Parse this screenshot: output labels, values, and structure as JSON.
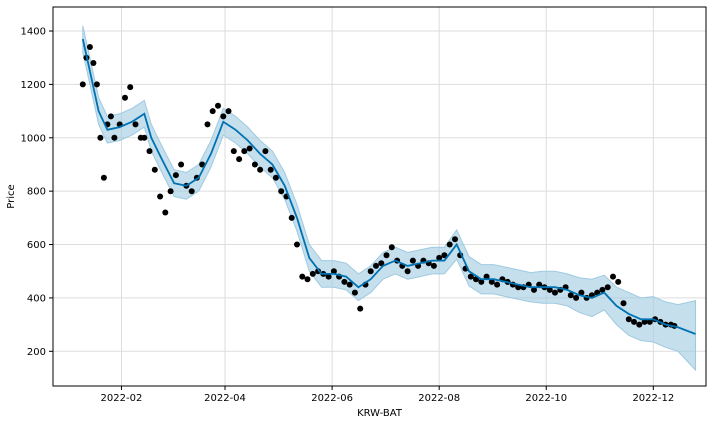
{
  "chart_data": {
    "type": "line",
    "xlabel": "KRW-BAT",
    "ylabel": "Price",
    "x_range": [
      "2021-12-24",
      "2022-12-31"
    ],
    "ylim": [
      70,
      1490
    ],
    "grid": true,
    "x_ticks": [
      {
        "date": "2022-02-01",
        "label": "2022-02"
      },
      {
        "date": "2022-04-01",
        "label": "2022-04"
      },
      {
        "date": "2022-06-01",
        "label": "2022-06"
      },
      {
        "date": "2022-08-01",
        "label": "2022-08"
      },
      {
        "date": "2022-10-01",
        "label": "2022-10"
      },
      {
        "date": "2022-12-01",
        "label": "2022-12"
      }
    ],
    "y_ticks": [
      200,
      400,
      600,
      800,
      1000,
      1200,
      1400
    ],
    "colors": {
      "forecast": "#0072B2",
      "interval": "#9ecae1",
      "observed": "#000000",
      "grid": "#dddddd"
    },
    "series": [
      {
        "kind": "forecast",
        "x": [
          "2022-01-10",
          "2022-01-14",
          "2022-01-19",
          "2022-01-24",
          "2022-01-31",
          "2022-02-07",
          "2022-02-14",
          "2022-02-18",
          "2022-02-24",
          "2022-03-03",
          "2022-03-10",
          "2022-03-17",
          "2022-03-24",
          "2022-03-31",
          "2022-04-07",
          "2022-04-14",
          "2022-04-21",
          "2022-04-28",
          "2022-05-05",
          "2022-05-12",
          "2022-05-19",
          "2022-05-26",
          "2022-06-02",
          "2022-06-09",
          "2022-06-16",
          "2022-06-23",
          "2022-06-30",
          "2022-07-07",
          "2022-07-14",
          "2022-07-21",
          "2022-07-28",
          "2022-08-04",
          "2022-08-11",
          "2022-08-18",
          "2022-08-25",
          "2022-09-01",
          "2022-09-08",
          "2022-09-15",
          "2022-09-22",
          "2022-09-29",
          "2022-10-06",
          "2022-10-13",
          "2022-10-20",
          "2022-10-27",
          "2022-11-03",
          "2022-11-10",
          "2022-11-17",
          "2022-11-24",
          "2022-12-01",
          "2022-12-08",
          "2022-12-15",
          "2022-12-25"
        ],
        "y": [
          1370,
          1250,
          1100,
          1030,
          1040,
          1060,
          1090,
          1000,
          920,
          830,
          820,
          850,
          940,
          1060,
          1030,
          990,
          940,
          900,
          820,
          700,
          550,
          490,
          490,
          480,
          440,
          470,
          520,
          540,
          520,
          530,
          540,
          540,
          600,
          500,
          470,
          470,
          460,
          450,
          440,
          440,
          440,
          430,
          410,
          400,
          420,
          370,
          340,
          320,
          320,
          300,
          290,
          265
        ]
      },
      {
        "kind": "interval",
        "x": [
          "2022-01-10",
          "2022-01-14",
          "2022-01-19",
          "2022-01-24",
          "2022-01-31",
          "2022-02-07",
          "2022-02-14",
          "2022-02-18",
          "2022-02-24",
          "2022-03-03",
          "2022-03-10",
          "2022-03-17",
          "2022-03-24",
          "2022-03-31",
          "2022-04-07",
          "2022-04-14",
          "2022-04-21",
          "2022-04-28",
          "2022-05-05",
          "2022-05-12",
          "2022-05-19",
          "2022-05-26",
          "2022-06-02",
          "2022-06-09",
          "2022-06-16",
          "2022-06-23",
          "2022-06-30",
          "2022-07-07",
          "2022-07-14",
          "2022-07-21",
          "2022-07-28",
          "2022-08-04",
          "2022-08-11",
          "2022-08-18",
          "2022-08-25",
          "2022-09-01",
          "2022-09-08",
          "2022-09-15",
          "2022-09-22",
          "2022-09-29",
          "2022-10-06",
          "2022-10-13",
          "2022-10-20",
          "2022-10-27",
          "2022-11-03",
          "2022-11-10",
          "2022-11-17",
          "2022-11-24",
          "2022-12-01",
          "2022-12-08",
          "2022-12-15",
          "2022-12-25"
        ],
        "upper": [
          1420,
          1300,
          1150,
          1080,
          1090,
          1110,
          1140,
          1050,
          970,
          880,
          870,
          900,
          990,
          1110,
          1080,
          1040,
          990,
          950,
          870,
          750,
          600,
          540,
          540,
          530,
          490,
          520,
          570,
          590,
          570,
          580,
          590,
          590,
          655,
          555,
          525,
          525,
          515,
          505,
          495,
          500,
          500,
          490,
          475,
          470,
          485,
          440,
          420,
          400,
          405,
          385,
          375,
          390
        ],
        "lower": [
          1320,
          1200,
          1050,
          980,
          990,
          1010,
          1040,
          950,
          870,
          780,
          770,
          800,
          890,
          1010,
          980,
          940,
          890,
          850,
          770,
          650,
          500,
          440,
          440,
          430,
          390,
          420,
          470,
          490,
          470,
          480,
          490,
          490,
          545,
          445,
          415,
          415,
          405,
          395,
          385,
          380,
          380,
          370,
          345,
          330,
          355,
          300,
          260,
          240,
          235,
          215,
          200,
          130
        ]
      },
      {
        "kind": "observed",
        "x": [
          "2022-01-10",
          "2022-01-12",
          "2022-01-14",
          "2022-01-16",
          "2022-01-18",
          "2022-01-20",
          "2022-01-22",
          "2022-01-24",
          "2022-01-26",
          "2022-01-28",
          "2022-01-31",
          "2022-02-03",
          "2022-02-06",
          "2022-02-09",
          "2022-02-12",
          "2022-02-14",
          "2022-02-17",
          "2022-02-20",
          "2022-02-23",
          "2022-02-26",
          "2022-03-01",
          "2022-03-04",
          "2022-03-07",
          "2022-03-10",
          "2022-03-13",
          "2022-03-16",
          "2022-03-19",
          "2022-03-22",
          "2022-03-25",
          "2022-03-28",
          "2022-03-31",
          "2022-04-03",
          "2022-04-06",
          "2022-04-09",
          "2022-04-12",
          "2022-04-15",
          "2022-04-18",
          "2022-04-21",
          "2022-04-24",
          "2022-04-27",
          "2022-04-30",
          "2022-05-03",
          "2022-05-06",
          "2022-05-09",
          "2022-05-12",
          "2022-05-15",
          "2022-05-18",
          "2022-05-21",
          "2022-05-24",
          "2022-05-27",
          "2022-05-30",
          "2022-06-02",
          "2022-06-05",
          "2022-06-08",
          "2022-06-11",
          "2022-06-14",
          "2022-06-17",
          "2022-06-20",
          "2022-06-23",
          "2022-06-26",
          "2022-06-29",
          "2022-07-02",
          "2022-07-05",
          "2022-07-08",
          "2022-07-11",
          "2022-07-14",
          "2022-07-17",
          "2022-07-20",
          "2022-07-23",
          "2022-07-26",
          "2022-07-29",
          "2022-08-01",
          "2022-08-04",
          "2022-08-07",
          "2022-08-10",
          "2022-08-13",
          "2022-08-16",
          "2022-08-19",
          "2022-08-22",
          "2022-08-25",
          "2022-08-28",
          "2022-08-31",
          "2022-09-03",
          "2022-09-06",
          "2022-09-09",
          "2022-09-12",
          "2022-09-15",
          "2022-09-18",
          "2022-09-21",
          "2022-09-24",
          "2022-09-27",
          "2022-09-30",
          "2022-10-03",
          "2022-10-06",
          "2022-10-09",
          "2022-10-12",
          "2022-10-15",
          "2022-10-18",
          "2022-10-21",
          "2022-10-24",
          "2022-10-27",
          "2022-10-30",
          "2022-11-02",
          "2022-11-05",
          "2022-11-08",
          "2022-11-11",
          "2022-11-14",
          "2022-11-17",
          "2022-11-20",
          "2022-11-23",
          "2022-11-26",
          "2022-11-29",
          "2022-12-02",
          "2022-12-05",
          "2022-12-08",
          "2022-12-11",
          "2022-12-13"
        ],
        "y": [
          1200,
          1300,
          1340,
          1280,
          1200,
          1000,
          850,
          1050,
          1080,
          1000,
          1050,
          1150,
          1190,
          1050,
          1000,
          1000,
          950,
          880,
          780,
          720,
          800,
          860,
          900,
          820,
          800,
          850,
          900,
          1050,
          1100,
          1120,
          1080,
          1100,
          950,
          920,
          950,
          960,
          900,
          880,
          950,
          880,
          850,
          800,
          780,
          700,
          600,
          480,
          470,
          490,
          500,
          490,
          480,
          500,
          480,
          460,
          450,
          420,
          360,
          450,
          500,
          520,
          530,
          560,
          590,
          540,
          520,
          500,
          540,
          520,
          540,
          530,
          520,
          550,
          560,
          600,
          620,
          560,
          510,
          480,
          470,
          460,
          480,
          460,
          450,
          470,
          460,
          450,
          440,
          440,
          450,
          430,
          450,
          440,
          430,
          420,
          430,
          440,
          410,
          400,
          420,
          400,
          410,
          420,
          430,
          440,
          480,
          460,
          380,
          320,
          310,
          300,
          310,
          310,
          320,
          310,
          300,
          300,
          295
        ]
      }
    ]
  }
}
